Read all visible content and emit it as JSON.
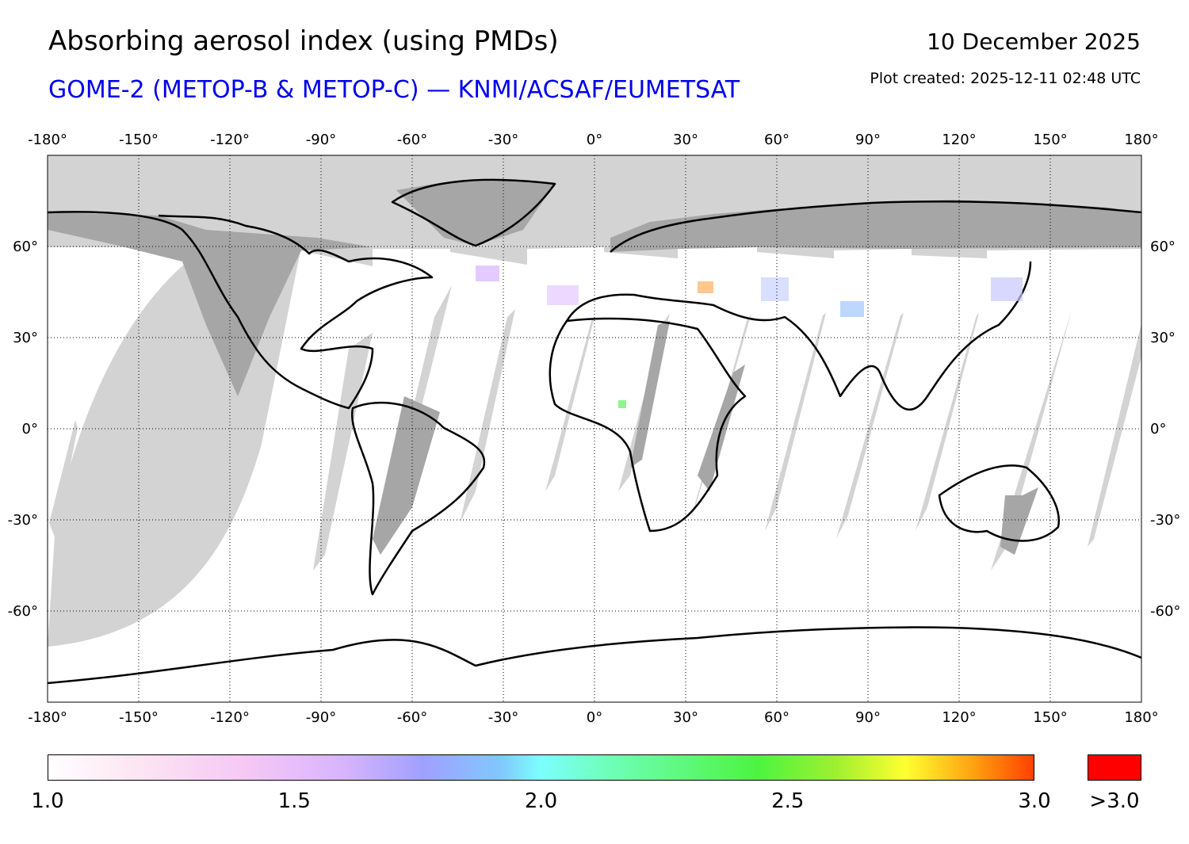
{
  "header": {
    "title": "Absorbing aerosol index (using PMDs)",
    "subtitle": "GOME-2 (METOP-B & METOP-C) — KNMI/ACSAF/EUMETSAT",
    "date": "10 December 2025",
    "plot_created": "Plot created: 2025-12-11 02:48 UTC"
  },
  "map": {
    "projection": "equirectangular",
    "lon_range": [
      -180,
      180
    ],
    "lat_range": [
      -90,
      90
    ],
    "lon_ticks": [
      -180,
      -150,
      -120,
      -90,
      -60,
      -30,
      0,
      30,
      60,
      90,
      120,
      150,
      180
    ],
    "lon_tick_labels": [
      "-180°",
      "-150°",
      "-120°",
      "-90°",
      "-60°",
      "-30°",
      "0°",
      "30°",
      "60°",
      "90°",
      "120°",
      "150°",
      "180°"
    ],
    "lat_ticks": [
      60,
      30,
      0,
      -30,
      -60
    ],
    "lat_tick_labels": [
      "60°",
      "30°",
      "0°",
      "-30°",
      "-60°"
    ],
    "grid": "dotted",
    "colors": {
      "no_data": "#d3d3d3",
      "land_no_data": "#a6a6a6",
      "coastline": "#000000",
      "background": "#ffffff"
    }
  },
  "colorbar": {
    "labels": [
      "1.0",
      "1.5",
      "2.0",
      "2.5",
      "3.0"
    ],
    "values": [
      1.0,
      1.5,
      2.0,
      2.5,
      3.0
    ],
    "over_label": ">3.0",
    "over_color": "#ff0000"
  }
}
